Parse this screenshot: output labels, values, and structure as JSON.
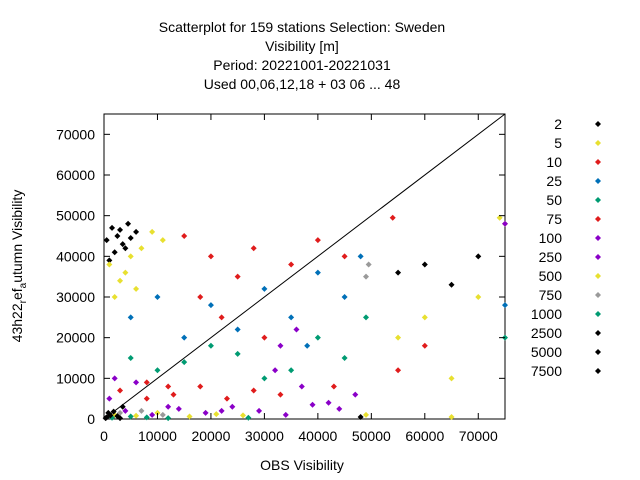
{
  "chart_data": {
    "type": "scatter",
    "title_lines": [
      "Scatterplot for  159 stations Selection: Sweden",
      "Visibility [m]",
      "Period: 20221001-20221031",
      "Used  00,06,12,18  + 03 06 ... 48"
    ],
    "xlabel": "OBS Visibility",
    "ylabel_main": "43h22",
    "ylabel_sub1": "r",
    "ylabel_mid": "ef",
    "ylabel_sub2": "a",
    "ylabel_tail": "utumn Visibility",
    "xlim": [
      0,
      75000
    ],
    "ylim": [
      0,
      75000
    ],
    "x_ticks": [
      0,
      10000,
      20000,
      30000,
      40000,
      50000,
      60000,
      70000
    ],
    "y_ticks": [
      0,
      10000,
      20000,
      30000,
      40000,
      50000,
      60000,
      70000
    ],
    "grid": false,
    "legend_position": "right",
    "diagonal_line": true,
    "series": [
      {
        "name": "2",
        "color": "#000000",
        "marker": "diamond",
        "points": [
          [
            500,
            44000
          ],
          [
            1500,
            47000
          ],
          [
            2500,
            45000
          ],
          [
            3500,
            43000
          ],
          [
            4500,
            48000
          ],
          [
            2000,
            41000
          ],
          [
            3000,
            46500
          ],
          [
            5000,
            44500
          ],
          [
            1000,
            39000
          ],
          [
            4000,
            42000
          ],
          [
            6000,
            46000
          ],
          [
            55000,
            36000
          ],
          [
            60000,
            38000
          ],
          [
            65000,
            33000
          ],
          [
            70000,
            40000
          ]
        ]
      },
      {
        "name": "5",
        "color": "#e8e030",
        "marker": "diamond",
        "points": [
          [
            1000,
            38000
          ],
          [
            3000,
            34000
          ],
          [
            5000,
            40000
          ],
          [
            7000,
            42000
          ],
          [
            9000,
            46000
          ],
          [
            2000,
            30000
          ],
          [
            11000,
            44000
          ],
          [
            4000,
            36000
          ],
          [
            6000,
            32000
          ],
          [
            55000,
            20000
          ],
          [
            60000,
            25000
          ],
          [
            65000,
            10000
          ],
          [
            70000,
            30000
          ],
          [
            75000,
            48000
          ]
        ]
      },
      {
        "name": "10",
        "color": "#e01c1c",
        "marker": "diamond",
        "points": [
          [
            15000,
            45000
          ],
          [
            20000,
            40000
          ],
          [
            25000,
            35000
          ],
          [
            18000,
            30000
          ],
          [
            22000,
            25000
          ],
          [
            28000,
            42000
          ],
          [
            35000,
            38000
          ],
          [
            40000,
            44000
          ],
          [
            45000,
            40000
          ],
          [
            30000,
            20000
          ],
          [
            8000,
            5000
          ],
          [
            12000,
            8000
          ],
          [
            55000,
            12000
          ],
          [
            60000,
            18000
          ]
        ]
      },
      {
        "name": "25",
        "color": "#0070b8",
        "marker": "diamond",
        "points": [
          [
            10000,
            30000
          ],
          [
            20000,
            28000
          ],
          [
            30000,
            32000
          ],
          [
            40000,
            36000
          ],
          [
            45000,
            30000
          ],
          [
            15000,
            20000
          ],
          [
            25000,
            22000
          ],
          [
            35000,
            25000
          ],
          [
            48000,
            40000
          ],
          [
            5000,
            25000
          ],
          [
            38000,
            18000
          ],
          [
            75000,
            28000
          ]
        ]
      },
      {
        "name": "50",
        "color": "#009b72",
        "marker": "diamond",
        "points": [
          [
            5000,
            15000
          ],
          [
            15000,
            14000
          ],
          [
            25000,
            16000
          ],
          [
            35000,
            12000
          ],
          [
            45000,
            15000
          ],
          [
            10000,
            12000
          ],
          [
            20000,
            18000
          ],
          [
            30000,
            10000
          ],
          [
            40000,
            20000
          ],
          [
            49000,
            25000
          ],
          [
            75000,
            20000
          ]
        ]
      },
      {
        "name": "75",
        "color": "#e01c1c",
        "marker": "diamond",
        "points": [
          [
            3000,
            7000
          ],
          [
            8000,
            9000
          ],
          [
            13000,
            6000
          ],
          [
            18000,
            8000
          ],
          [
            23000,
            5000
          ],
          [
            28000,
            7000
          ],
          [
            33000,
            6000
          ],
          [
            43000,
            8000
          ],
          [
            54000,
            49500
          ]
        ]
      },
      {
        "name": "100",
        "color": "#8a00c8",
        "marker": "diamond",
        "points": [
          [
            2000,
            10000
          ],
          [
            6000,
            9000
          ],
          [
            12000,
            3000
          ],
          [
            22000,
            2000
          ],
          [
            32000,
            12000
          ],
          [
            37000,
            8000
          ],
          [
            42000,
            4000
          ],
          [
            47000,
            6000
          ],
          [
            33000,
            18000
          ],
          [
            36000,
            22000
          ],
          [
            75000,
            48000
          ]
        ]
      },
      {
        "name": "250",
        "color": "#8a00c8",
        "marker": "diamond",
        "points": [
          [
            1000,
            5000
          ],
          [
            4000,
            2000
          ],
          [
            9000,
            1000
          ],
          [
            14000,
            2500
          ],
          [
            19000,
            1500
          ],
          [
            24000,
            3000
          ],
          [
            29000,
            2000
          ],
          [
            34000,
            1000
          ],
          [
            39000,
            3500
          ],
          [
            44000,
            2500
          ]
        ]
      },
      {
        "name": "500",
        "color": "#e8e030",
        "marker": "diamond",
        "points": [
          [
            2000,
            1000
          ],
          [
            6000,
            800
          ],
          [
            10000,
            1500
          ],
          [
            16000,
            600
          ],
          [
            21000,
            1200
          ],
          [
            26000,
            900
          ],
          [
            49000,
            1000
          ],
          [
            65000,
            500
          ],
          [
            74000,
            49500
          ]
        ]
      },
      {
        "name": "750",
        "color": "#9a9a9a",
        "marker": "diamond",
        "points": [
          [
            3000,
            1500
          ],
          [
            7000,
            2000
          ],
          [
            11000,
            1000
          ],
          [
            49000,
            35000
          ],
          [
            49500,
            38000
          ]
        ]
      },
      {
        "name": "1000",
        "color": "#009b72",
        "marker": "diamond",
        "points": [
          [
            1500,
            300
          ],
          [
            5000,
            600
          ],
          [
            8000,
            400
          ],
          [
            12000,
            200
          ],
          [
            27000,
            300
          ]
        ]
      },
      {
        "name": "2500",
        "color": "#000000",
        "marker": "diamond",
        "points": [
          [
            800,
            1500
          ],
          [
            2500,
            700
          ],
          [
            3500,
            3000
          ],
          [
            48000,
            500
          ]
        ]
      },
      {
        "name": "5000",
        "color": "#000000",
        "marker": "diamond",
        "points": [
          [
            500,
            400
          ],
          [
            1800,
            1800
          ],
          [
            3000,
            200
          ]
        ]
      },
      {
        "name": "7500",
        "color": "#000000",
        "marker": "diamond",
        "points": [
          [
            300,
            200
          ],
          [
            1200,
            900
          ]
        ]
      }
    ]
  }
}
